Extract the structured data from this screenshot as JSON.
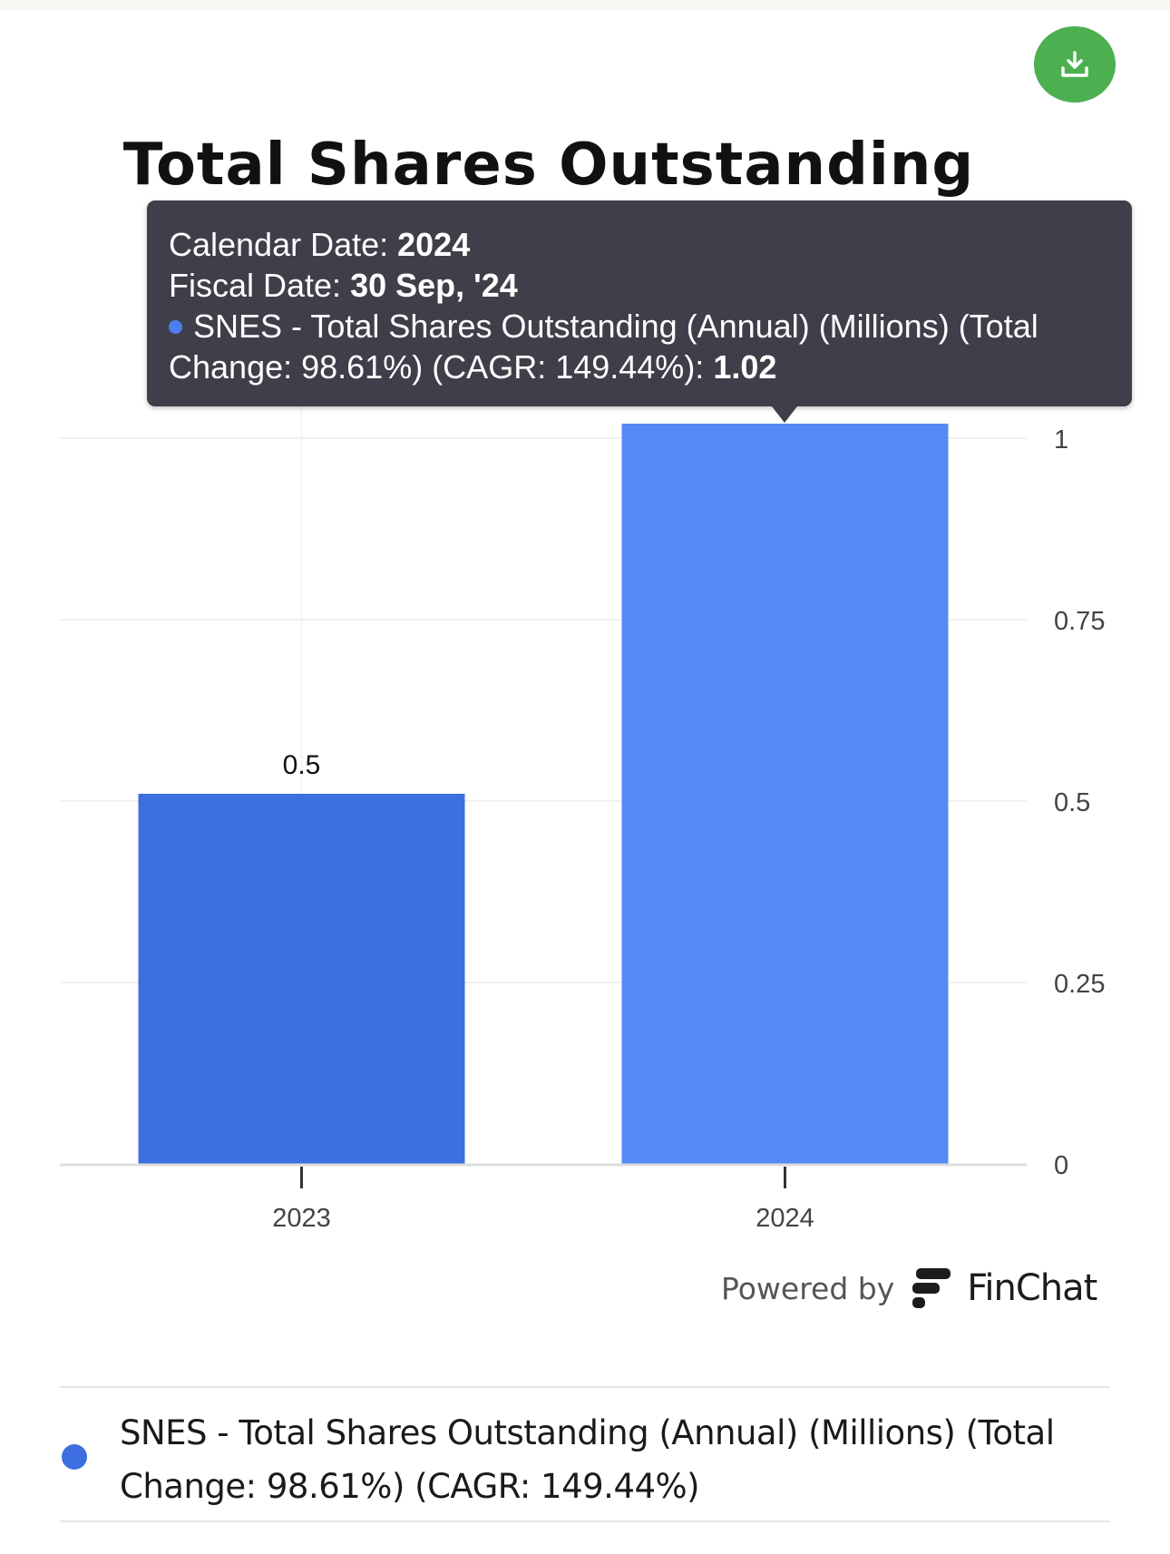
{
  "title": "Total Shares Outstanding",
  "download_icon": "download-icon",
  "tooltip": {
    "calendar_label": "Calendar Date: ",
    "calendar_value": "2024",
    "fiscal_label": "Fiscal Date: ",
    "fiscal_value": "30 Sep, '24",
    "series_text": "SNES - Total Shares Outstanding (Annual) (Millions) (Total Change: 98.61%) (CAGR: 149.44%): ",
    "series_value": "1.02"
  },
  "powered_by": "Powered by",
  "brand": "FinChat",
  "legend": {
    "label": "SNES - Total Shares Outstanding (Annual) (Millions) (Total Change: 98.61%) (CAGR: 149.44%)",
    "color": "#3d6fe0"
  },
  "chart_data": {
    "type": "bar",
    "title": "Total Shares Outstanding",
    "categories": [
      "2023",
      "2024"
    ],
    "series": [
      {
        "name": "SNES - Total Shares Outstanding (Annual) (Millions) (Total Change: 98.61%) (CAGR: 149.44%)",
        "values": [
          0.51,
          1.02
        ],
        "data_labels": [
          "0.5",
          null
        ],
        "colors": [
          "#3d6fe0",
          "#5789f5"
        ]
      }
    ],
    "y_ticks": [
      "0",
      "0.25",
      "0.5",
      "0.75",
      "1"
    ],
    "ylim": [
      0,
      1.25
    ],
    "y_axis_side": "right",
    "grid": true
  }
}
